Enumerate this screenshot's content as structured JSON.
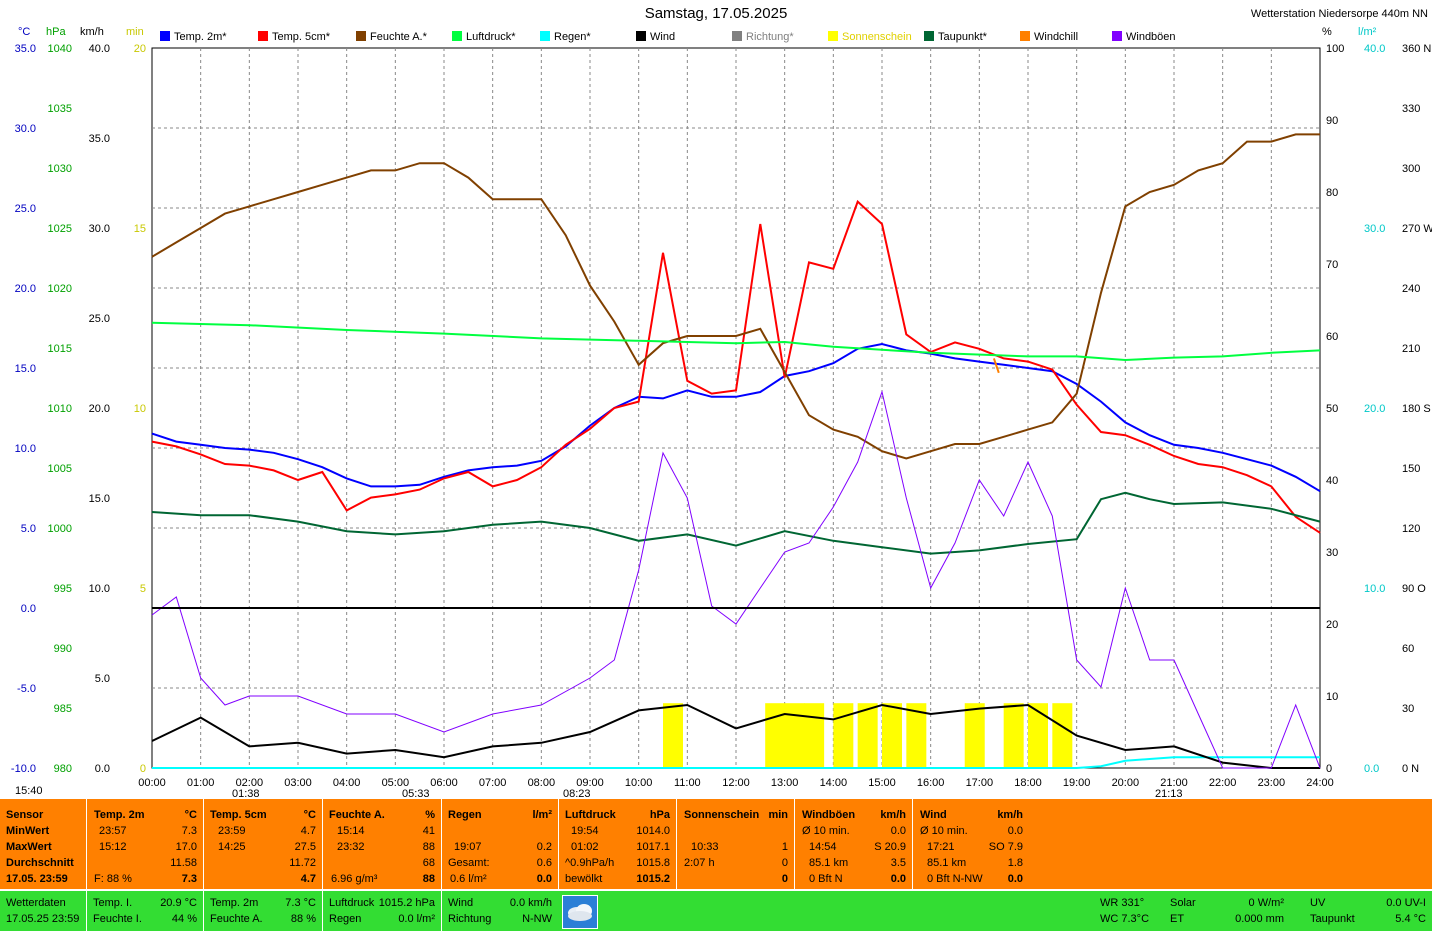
{
  "header": {
    "title": "Samstag, 17.05.2025",
    "station": "Wetterstation Niedersorpe 440m NN"
  },
  "units_left": [
    "°C",
    "hPa",
    "km/h",
    "min"
  ],
  "units_right": [
    "%",
    "l/m²"
  ],
  "legend": [
    {
      "label": "Temp. 2m*",
      "color": "#0000ff"
    },
    {
      "label": "Temp. 5cm*",
      "color": "#ff0000"
    },
    {
      "label": "Feuchte A.*",
      "color": "#804000"
    },
    {
      "label": "Luftdruck*",
      "color": "#00ff40"
    },
    {
      "label": "Regen*",
      "color": "#00ffff"
    },
    {
      "label": "Wind",
      "color": "#000000"
    },
    {
      "label": "Richtung*",
      "color": "#808080"
    },
    {
      "label": "Sonnenschein",
      "color": "#ffff00"
    },
    {
      "label": "Taupunkt*",
      "color": "#006633"
    },
    {
      "label": "Windchill",
      "color": "#ff8000"
    },
    {
      "label": "Windböen",
      "color": "#8000ff"
    }
  ],
  "chart_data": {
    "type": "line",
    "x_ticks": [
      "00:00",
      "01:00",
      "02:00",
      "03:00",
      "04:00",
      "05:00",
      "06:00",
      "07:00",
      "08:00",
      "09:00",
      "10:00",
      "11:00",
      "12:00",
      "13:00",
      "14:00",
      "15:00",
      "16:00",
      "17:00",
      "18:00",
      "19:00",
      "20:00",
      "21:00",
      "22:00",
      "23:00",
      "24:00"
    ],
    "axes": {
      "temp_c": {
        "ticks": [
          "35.0",
          "30.0",
          "25.0",
          "20.0",
          "15.0",
          "10.0",
          "5.0",
          "0.0",
          "-5.0",
          "-10.0"
        ],
        "ylim": [
          -10,
          35
        ],
        "color": "#0000c0"
      },
      "pressure_hpa": {
        "ticks": [
          "1040",
          "1035",
          "1030",
          "1025",
          "1020",
          "1015",
          "1010",
          "1005",
          "1000",
          "995",
          "990",
          "985",
          "980"
        ],
        "ylim": [
          980,
          1040
        ],
        "color": "#00a000"
      },
      "wind_kmh": {
        "ticks": [
          "40.0",
          "35.0",
          "30.0",
          "25.0",
          "20.0",
          "15.0",
          "10.0",
          "5.0",
          "0.0"
        ],
        "ylim": [
          0,
          40
        ],
        "color": "#000000"
      },
      "sun_min": {
        "ticks": [
          "20",
          "15",
          "10",
          "5",
          "0"
        ],
        "ylim": [
          0,
          20
        ],
        "color": "#c8c800"
      },
      "humidity_pct": {
        "ticks": [
          "100",
          "90",
          "80",
          "70",
          "60",
          "50",
          "40",
          "30",
          "20",
          "10",
          "0"
        ],
        "ylim": [
          0,
          100
        ],
        "color": "#000000"
      },
      "rain_lm2": {
        "ticks": [
          "40.0",
          "30.0",
          "20.0",
          "10.0",
          "0.0"
        ],
        "ylim": [
          0,
          40
        ],
        "color": "#00c8c8"
      },
      "direction_deg": {
        "ticks": [
          "360 N",
          "330",
          "300",
          "270 W",
          "240",
          "210",
          "180 S",
          "150",
          "120",
          "90 O",
          "60",
          "30",
          "0 N"
        ],
        "ylim": [
          0,
          360
        ],
        "color": "#000000"
      }
    },
    "series": [
      {
        "name": "Temp. 2m*",
        "color": "#0000ff",
        "axis": "temp_c",
        "x": [
          0,
          0.5,
          1,
          1.5,
          2,
          2.5,
          3,
          3.5,
          4,
          4.5,
          5,
          5.5,
          6,
          6.5,
          7,
          7.5,
          8,
          8.5,
          9,
          9.5,
          10,
          10.5,
          11,
          11.5,
          12,
          12.5,
          13,
          13.5,
          14,
          14.5,
          15,
          15.5,
          16,
          16.5,
          17,
          17.5,
          18,
          18.5,
          19,
          19.5,
          20,
          20.5,
          21,
          21.5,
          22,
          22.5,
          23,
          23.5,
          24
        ],
        "y": [
          10.9,
          10.4,
          10.2,
          10.0,
          9.9,
          9.7,
          9.3,
          8.8,
          8.1,
          7.6,
          7.6,
          7.7,
          8.2,
          8.6,
          8.8,
          8.9,
          9.2,
          10.1,
          11.4,
          12.5,
          13.2,
          13.1,
          13.6,
          13.2,
          13.2,
          13.5,
          14.5,
          14.8,
          15.3,
          16.2,
          16.5,
          16.1,
          15.9,
          15.6,
          15.4,
          15.2,
          15.0,
          14.8,
          14.0,
          12.9,
          11.6,
          10.8,
          10.2,
          10.0,
          9.7,
          9.3,
          8.9,
          8.2,
          7.3
        ]
      },
      {
        "name": "Temp. 5cm*",
        "color": "#ff0000",
        "axis": "temp_c",
        "x": [
          0,
          0.5,
          1,
          1.5,
          2,
          2.5,
          3,
          3.5,
          4,
          4.5,
          5,
          5.5,
          6,
          6.5,
          7,
          7.5,
          8,
          8.5,
          9,
          9.5,
          10,
          10.5,
          11,
          11.5,
          12,
          12.5,
          13,
          13.5,
          14,
          14.5,
          15,
          15.5,
          16,
          16.5,
          17,
          17.5,
          18,
          18.5,
          19,
          19.5,
          20,
          20.5,
          21,
          21.5,
          22,
          22.5,
          23,
          23.5,
          24
        ],
        "y": [
          10.4,
          10.1,
          9.6,
          9.0,
          8.9,
          8.6,
          8.0,
          8.5,
          6.1,
          6.9,
          7.1,
          7.4,
          8.1,
          8.5,
          7.6,
          8.0,
          8.8,
          10.2,
          11.2,
          12.5,
          12.9,
          22.2,
          14.2,
          13.4,
          13.6,
          24.0,
          14.4,
          21.6,
          21.2,
          25.4,
          24.0,
          17.1,
          16.0,
          16.6,
          16.2,
          15.6,
          15.4,
          14.9,
          12.7,
          11.0,
          10.8,
          10.2,
          9.5,
          9.0,
          8.8,
          8.3,
          7.6,
          5.7,
          4.7
        ]
      },
      {
        "name": "Feuchte A.*",
        "color": "#804000",
        "axis": "humidity_pct",
        "x": [
          0,
          0.5,
          1,
          1.5,
          2,
          2.5,
          3,
          3.5,
          4,
          4.5,
          5,
          5.5,
          6,
          6.5,
          7,
          7.5,
          8,
          8.5,
          9,
          9.5,
          10,
          10.5,
          11,
          11.5,
          12,
          12.5,
          13,
          13.5,
          14,
          14.5,
          15,
          15.5,
          16,
          16.5,
          17,
          17.5,
          18,
          18.5,
          19,
          19.5,
          20,
          20.5,
          21,
          21.5,
          22,
          22.5,
          23,
          23.5,
          24
        ],
        "y": [
          71,
          73,
          75,
          77,
          78,
          79,
          80,
          81,
          82,
          83,
          83,
          84,
          84,
          82,
          79,
          79,
          79,
          74,
          67,
          62,
          56,
          59,
          60,
          60,
          60,
          61,
          55,
          49,
          47,
          46,
          44,
          43,
          44,
          45,
          45,
          46,
          47,
          48,
          52,
          66,
          78,
          80,
          81,
          83,
          84,
          87,
          87,
          88,
          88
        ]
      },
      {
        "name": "Luftdruck*",
        "color": "#00ff40",
        "axis": "pressure_hpa",
        "x": [
          0,
          2,
          4,
          6,
          8,
          10,
          12,
          13,
          14,
          16,
          18,
          19,
          20,
          21,
          22,
          23,
          24
        ],
        "y": [
          1017.1,
          1016.9,
          1016.5,
          1016.2,
          1015.8,
          1015.6,
          1015.4,
          1015.5,
          1015.1,
          1014.6,
          1014.3,
          1014.3,
          1014.0,
          1014.2,
          1014.3,
          1014.6,
          1014.8
        ]
      },
      {
        "name": "Taupunkt*",
        "color": "#006633",
        "axis": "temp_c",
        "x": [
          0,
          1,
          2,
          3,
          4,
          5,
          6,
          7,
          8,
          9,
          10,
          11,
          12,
          13,
          14,
          15,
          16,
          17,
          18,
          19,
          19.5,
          20,
          20.5,
          21,
          22,
          23,
          24
        ],
        "y": [
          6.0,
          5.8,
          5.8,
          5.4,
          4.8,
          4.6,
          4.8,
          5.2,
          5.4,
          5.0,
          4.2,
          4.6,
          3.9,
          4.8,
          4.2,
          3.8,
          3.4,
          3.6,
          4.0,
          4.3,
          6.8,
          7.2,
          6.8,
          6.5,
          6.6,
          6.2,
          5.4
        ]
      },
      {
        "name": "Regen*",
        "color": "#00ffff",
        "axis": "rain_lm2",
        "x": [
          0,
          19,
          19.5,
          20,
          20.5,
          21,
          21.5,
          22,
          23,
          24
        ],
        "y": [
          0,
          0,
          0.1,
          0.4,
          0.5,
          0.6,
          0.6,
          0.6,
          0.6,
          0.6
        ]
      },
      {
        "name": "Wind",
        "color": "#000000",
        "axis": "wind_kmh",
        "x": [
          0,
          1,
          2,
          3,
          4,
          5,
          6,
          7,
          8,
          9,
          10,
          11,
          12,
          13,
          14,
          15,
          16,
          17,
          18,
          19,
          20,
          21,
          22,
          23,
          24
        ],
        "y": [
          1.5,
          2.8,
          1.2,
          1.4,
          0.8,
          1.0,
          0.6,
          1.2,
          1.4,
          2.0,
          3.2,
          3.5,
          2.2,
          3.0,
          2.7,
          3.5,
          3.0,
          3.3,
          3.5,
          1.8,
          1.0,
          1.2,
          0.3,
          0.0,
          0.0
        ]
      },
      {
        "name": "Windböen",
        "color": "#8000ff",
        "axis": "wind_kmh",
        "x": [
          0,
          0.5,
          1,
          1.5,
          2,
          3,
          4,
          5,
          6,
          7,
          8,
          9,
          9.5,
          10,
          10.5,
          11,
          11.5,
          12,
          12.5,
          13,
          13.5,
          14,
          14.5,
          15,
          15.5,
          16,
          16.5,
          17,
          17.5,
          18,
          18.5,
          19,
          19.5,
          20,
          20.5,
          21,
          21.5,
          22,
          23,
          23.5,
          24
        ],
        "y": [
          8.5,
          9.5,
          5.0,
          3.5,
          4.0,
          4.0,
          3.0,
          3.0,
          2.0,
          3.0,
          3.5,
          5.0,
          6.0,
          11.0,
          17.5,
          15.0,
          9.0,
          8.0,
          10.0,
          12.0,
          12.5,
          14.5,
          17.0,
          20.9,
          15.0,
          10.0,
          12.5,
          16.0,
          14.0,
          17.0,
          14.0,
          6.0,
          4.5,
          10.0,
          6.0,
          6.0,
          3.0,
          0.0,
          0.0,
          3.5,
          0.0
        ]
      },
      {
        "name": "Sonnenschein",
        "color": "#ffff00",
        "axis": "sun_min",
        "x": [
          10.5,
          12.6,
          13.0,
          13.4,
          14.0,
          14.5,
          15.0,
          15.5,
          16.7,
          17.5,
          18.0,
          18.5
        ],
        "y": [
          1,
          1,
          1,
          1,
          1,
          1,
          1,
          1,
          1,
          1,
          1,
          1
        ]
      },
      {
        "name": "Windchill",
        "color": "#ff8000",
        "axis": "temp_c",
        "x": [
          17.3,
          17.4
        ],
        "y": [
          15.6,
          14.7
        ]
      }
    ],
    "markers": [
      {
        "label": "15:40"
      },
      {
        "label": "01:38"
      },
      {
        "label": "05:33"
      },
      {
        "label": "08:23"
      },
      {
        "label": "21:13"
      }
    ]
  },
  "stats": {
    "sensor": {
      "h": "Sensor",
      "rows": [
        "MinWert",
        "MaxWert",
        "Durchschnitt",
        "17.05. 23:59"
      ]
    },
    "temp2m": {
      "h": "Temp. 2m",
      "unit": "°C",
      "min_t": "23:57",
      "min_v": "7.3",
      "max_t": "15:12",
      "max_v": "17.0",
      "avg": "11.58",
      "cur_extra": "F: 88 %",
      "cur": "7.3"
    },
    "temp5cm": {
      "h": "Temp. 5cm",
      "unit": "°C",
      "min_t": "23:59",
      "min_v": "4.7",
      "max_t": "14:25",
      "max_v": "27.5",
      "avg": "11.72",
      "cur": "4.7"
    },
    "feuchte": {
      "h": "Feuchte A.",
      "unit": "%",
      "min_t": "15:14",
      "min_v": "41",
      "max_t": "23:32",
      "max_v": "88",
      "avg": "68",
      "cur_extra": "6.96 g/m³",
      "cur": "88"
    },
    "regen": {
      "h": "Regen",
      "unit": "l/m²",
      "max_t": "19:07",
      "max_v": "0.2",
      "ges_l": "Gesamt:",
      "ges_v": "0.6",
      "cur_extra": "0.6 l/m²",
      "cur": "0.0"
    },
    "luftdruck": {
      "h": "Luftdruck",
      "unit": "hPa",
      "min_t": "19:54",
      "min_v": "1014.0",
      "max_t": "01:02",
      "max_v": "1017.1",
      "avg_l": "^0.9hPa/h",
      "avg": "1015.8",
      "cur_extra": "bewölkt",
      "cur": "1015.2"
    },
    "sonne": {
      "h": "Sonnenschein",
      "unit": "min",
      "max_t": "10:33",
      "max_v": "1",
      "avg_l": "2:07 h",
      "avg": "0",
      "cur": "0"
    },
    "boeen": {
      "h": "Windböen",
      "unit": "km/h",
      "min_l": "Ø 10 min.",
      "min_v": "0.0",
      "max_t": "14:54",
      "max_v": "S 20.9",
      "avg_l": "85.1 km",
      "avg": "3.5",
      "cur_l": "0 Bft N",
      "cur": "0.0"
    },
    "wind": {
      "h": "Wind",
      "unit": "km/h",
      "min_l": "Ø 10 min.",
      "min_v": "0.0",
      "max_t": "17:21",
      "max_v": "SO 7.9",
      "avg_l": "85.1 km",
      "avg": "1.8",
      "cur_l": "0 Bft N-NW",
      "cur": "0.0"
    }
  },
  "bottom": {
    "wetterdaten": "Wetterdaten",
    "stamp": "17.05.25 23:59",
    "temp_i_l": "Temp. I.",
    "temp_i_v": "20.9 °C",
    "feuchte_i_l": "Feuchte I.",
    "feuchte_i_v": "44 %",
    "temp2m_l": "Temp. 2m",
    "temp2m_v": "7.3 °C",
    "feuchte_a_l": "Feuchte A.",
    "feuchte_a_v": "88 %",
    "luftdruck_l": "Luftdruck",
    "luftdruck_v": "1015.2 hPa",
    "regen_l": "Regen",
    "regen_v": "0.0 l/m²",
    "wind_l": "Wind",
    "wind_v": "0.0 km/h",
    "richtung_l": "Richtung",
    "richtung_v": "N-NW",
    "wr": "WR 331°",
    "wc": "WC 7.3°C",
    "solar_l": "Solar",
    "solar_v": "0 W/m²",
    "et_l": "ET",
    "et_v": "0.000 mm",
    "uv_l": "UV",
    "uv_v": "0.0 UV-I",
    "taupunkt_l": "Taupunkt",
    "taupunkt_v": "5.4 °C"
  }
}
